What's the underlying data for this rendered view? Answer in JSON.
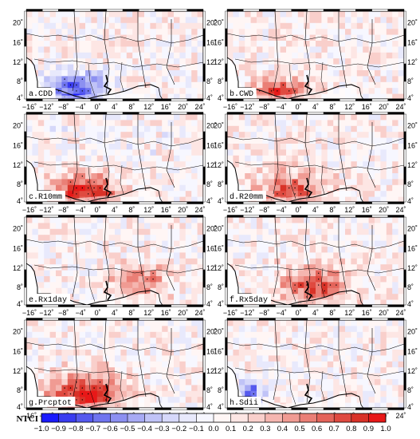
{
  "figure": {
    "panels": [
      {
        "label": "a.CDD"
      },
      {
        "label": "b.CWD"
      },
      {
        "label": "c.R10mm"
      },
      {
        "label": "d.R20mm"
      },
      {
        "label": "e.Rx1day"
      },
      {
        "label": "f.Rx5day"
      },
      {
        "label": "g.Prcptot"
      },
      {
        "label": "h.Sdii"
      }
    ],
    "lon_ticks": [
      "16°W",
      "12°W",
      "8°W",
      "4°W",
      "0°",
      "4°E",
      "8°E",
      "12°E",
      "16°E",
      "20°E",
      "24°E"
    ],
    "lat_ticks": [
      "20°N",
      "16°N",
      "12°N",
      "8°N",
      "4°N"
    ],
    "lon_tick_text": [
      "−16˚",
      "−12˚",
      "−8˚",
      "−4˚",
      "0˚",
      "4˚",
      "8˚",
      "12˚",
      "16˚",
      "20˚",
      "24˚"
    ],
    "lat_tick_text": [
      "20˚",
      "16˚",
      "12˚",
      "8˚",
      "4˚"
    ],
    "colorbar": {
      "title": "NTCI",
      "ticks": [
        "−1.0",
        "−0.9",
        "−0.8",
        "−0.7",
        "−0.6",
        "−0.5",
        "−0.4",
        "−0.3",
        "−0.2",
        "−0.1",
        "0.0",
        "0.1",
        "0.2",
        "0.3",
        "0.4",
        "0.5",
        "0.6",
        "0.7",
        "0.8",
        "0.9",
        "1.0"
      ],
      "colors": [
        "#1a1aff",
        "#3a3cf0",
        "#5559ee",
        "#6f74ef",
        "#8c90f1",
        "#a7aaf4",
        "#c0c3f7",
        "#d6d8fa",
        "#e8e9fc",
        "#f7f7ff",
        "#fff6f5",
        "#fde6e4",
        "#f9cfcb",
        "#f5b6b0",
        "#f09b93",
        "#ea7f76",
        "#e4645a",
        "#df4a40",
        "#d93228",
        "#e81818"
      ]
    }
  }
}
